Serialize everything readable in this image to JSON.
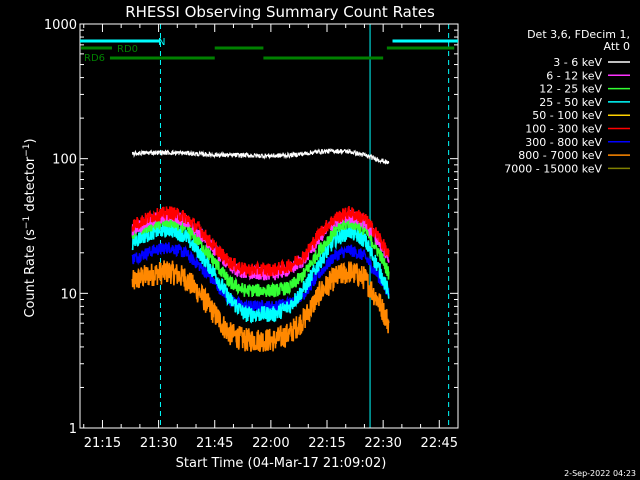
{
  "chart_data": {
    "type": "line",
    "title": "RHESSI Observing Summary Count Rates",
    "xlabel": "Start Time (04-Mar-17 21:09:02)",
    "ylabel": "Count Rate (s⁻¹ detector⁻¹)",
    "yscale": "log",
    "ylim": [
      1,
      1000
    ],
    "xlim_minutes": [
      0,
      101
    ],
    "y_ticks": [
      {
        "value": 1,
        "label": "1"
      },
      {
        "value": 10,
        "label": "10"
      },
      {
        "value": 100,
        "label": "100"
      },
      {
        "value": 1000,
        "label": "1000"
      }
    ],
    "x_ticks": [
      {
        "minute": 6,
        "label": "21:15"
      },
      {
        "minute": 21,
        "label": "21:30"
      },
      {
        "minute": 36,
        "label": "21:45"
      },
      {
        "minute": 51,
        "label": "22:00"
      },
      {
        "minute": 66,
        "label": "22:15"
      },
      {
        "minute": 81,
        "label": "22:30"
      },
      {
        "minute": 96,
        "label": "22:45"
      }
    ],
    "legend_header": [
      "Det 3,6, FDecim 1,",
      "Att 0"
    ],
    "legend_position": "right",
    "series": [
      {
        "name": "3 - 6 keV",
        "color": "#ffffff",
        "x": [
          14,
          16,
          20,
          24,
          28,
          32,
          36,
          40,
          44,
          48,
          52,
          56,
          60,
          64,
          68,
          72,
          76,
          80,
          82.5
        ],
        "values": [
          108,
          110,
          111,
          111,
          110,
          108,
          107,
          106,
          106,
          105,
          105,
          106,
          109,
          113,
          114,
          113,
          106,
          98,
          93
        ]
      },
      {
        "name": "6 - 12 keV",
        "color": "#ff33ff",
        "x": [
          14,
          16,
          20,
          24,
          28,
          32,
          36,
          40,
          44,
          48,
          52,
          56,
          60,
          64,
          68,
          72,
          76,
          80,
          82.5
        ],
        "values": [
          30,
          32,
          36,
          38,
          35,
          28,
          21,
          16,
          14,
          14,
          14,
          15,
          18,
          26,
          34,
          38,
          34,
          24,
          18
        ]
      },
      {
        "name": "12 - 25 keV",
        "color": "#33ff33",
        "x": [
          14,
          16,
          20,
          24,
          28,
          32,
          36,
          40,
          44,
          48,
          52,
          56,
          60,
          64,
          68,
          72,
          76,
          80,
          82.5
        ],
        "values": [
          28,
          30,
          33,
          34,
          31,
          24,
          17,
          12,
          10.5,
          10.5,
          10.5,
          11,
          14,
          21,
          29,
          34,
          30,
          20,
          14
        ]
      },
      {
        "name": "25 - 50 keV",
        "color": "#00ffff",
        "x": [
          14,
          16,
          20,
          24,
          28,
          32,
          36,
          40,
          44,
          48,
          52,
          56,
          60,
          64,
          68,
          72,
          76,
          80,
          82.5
        ],
        "values": [
          24,
          26,
          29,
          30,
          27,
          20,
          14,
          9,
          7,
          7,
          7,
          8,
          11,
          17,
          25,
          29,
          25,
          15,
          10
        ]
      },
      {
        "name": "50 - 100 keV",
        "color": "#ffd200",
        "x": [],
        "values": []
      },
      {
        "name": "100 - 300 keV",
        "color": "#ff0000",
        "x": [
          14,
          16,
          20,
          24,
          28,
          32,
          36,
          40,
          44,
          48,
          52,
          56,
          60,
          64,
          68,
          72,
          76,
          80,
          82.5
        ],
        "values": [
          32,
          34,
          38,
          40,
          37,
          30,
          22,
          17,
          15,
          15,
          15,
          16,
          19,
          28,
          36,
          40,
          36,
          26,
          19
        ]
      },
      {
        "name": "300 - 800 keV",
        "color": "#0000ff",
        "x": [
          14,
          16,
          20,
          24,
          28,
          32,
          36,
          40,
          44,
          48,
          52,
          56,
          60,
          64,
          68,
          72,
          76,
          80,
          82.5
        ],
        "values": [
          18,
          19,
          21,
          22,
          20,
          16,
          12,
          9,
          8,
          8,
          8,
          8.5,
          10,
          14,
          19,
          21,
          19,
          13,
          10
        ]
      },
      {
        "name": "800 - 7000 keV",
        "color": "#ff8800",
        "x": [
          14,
          16,
          20,
          24,
          28,
          32,
          36,
          40,
          44,
          48,
          52,
          56,
          60,
          64,
          68,
          72,
          76,
          80,
          82.5
        ],
        "values": [
          12,
          13,
          14,
          14.5,
          13,
          10,
          7,
          5,
          4.5,
          4.5,
          4.5,
          5,
          6.5,
          10,
          13,
          14.5,
          13,
          8.5,
          6
        ]
      },
      {
        "name": "7000 - 15000 keV",
        "color": "#808000",
        "x": [],
        "values": []
      }
    ],
    "annotations": [
      {
        "text": "N",
        "color": "#00ffff",
        "type": "night"
      },
      {
        "text": "RD0",
        "color": "#008000",
        "type": "attenuator"
      },
      {
        "text": "RD6",
        "color": "#008000",
        "type": "attenuator"
      }
    ],
    "night_intervals": [
      [
        0,
        21.5
      ],
      [
        83.5,
        101
      ]
    ],
    "rd0_intervals": [
      [
        36,
        49
      ],
      [
        82,
        100
      ]
    ],
    "rd6_intervals": [
      [
        8,
        36
      ],
      [
        49,
        81
      ]
    ],
    "vertical_lines": [
      {
        "minute": 0,
        "style": "solid",
        "color": "#00ffff"
      },
      {
        "minute": 21.5,
        "style": "dashed",
        "color": "#00ffff"
      },
      {
        "minute": 77.5,
        "style": "solid",
        "color": "#00ffff"
      },
      {
        "minute": 98.5,
        "style": "dashed",
        "color": "#00ffff"
      }
    ]
  },
  "footer": {
    "date": "2-Sep-2022 04:23"
  }
}
